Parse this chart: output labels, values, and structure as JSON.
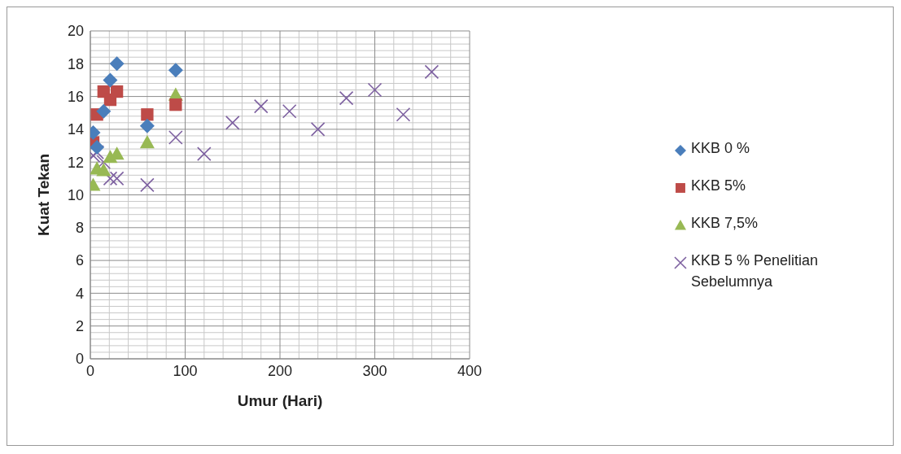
{
  "chart_data": {
    "type": "scatter",
    "xlabel": "Umur (Hari)",
    "ylabel": "Kuat Tekan",
    "xlim": [
      0,
      400
    ],
    "xticks": [
      0,
      100,
      200,
      300,
      400
    ],
    "ylim": [
      0,
      20
    ],
    "yticks": [
      0,
      2,
      4,
      6,
      8,
      10,
      12,
      14,
      16,
      18,
      20
    ],
    "grid": true,
    "legend": "right",
    "series": [
      {
        "name": "KKB 0 %",
        "color": "#4a7ebb",
        "marker": "diamond",
        "x": [
          3,
          7,
          14,
          21,
          28,
          60,
          90
        ],
        "values": [
          13.8,
          12.9,
          15.1,
          17.0,
          18.0,
          14.2,
          17.6
        ]
      },
      {
        "name": "KKB 5%",
        "color": "#be4b48",
        "marker": "square",
        "x": [
          3,
          7,
          14,
          21,
          28,
          60,
          90
        ],
        "values": [
          13.2,
          14.9,
          16.3,
          15.8,
          16.3,
          14.9,
          15.5
        ]
      },
      {
        "name": "KKB 7,5%",
        "color": "#98b954",
        "marker": "triangle",
        "x": [
          3,
          7,
          14,
          21,
          28,
          60,
          90
        ],
        "values": [
          10.6,
          11.6,
          11.5,
          12.3,
          12.5,
          13.2,
          16.1
        ]
      },
      {
        "name": "KKB 5 % Penelitian Sebelumnya",
        "color": "#7d60a0",
        "marker": "cross",
        "x": [
          3,
          7,
          14,
          21,
          28,
          60,
          90,
          120,
          150,
          180,
          210,
          240,
          270,
          300,
          330,
          360
        ],
        "values": [
          12.4,
          12.6,
          12.0,
          11.0,
          11.0,
          10.6,
          13.5,
          12.5,
          14.4,
          15.4,
          15.1,
          14.0,
          15.9,
          16.4,
          14.9,
          17.5
        ]
      }
    ]
  }
}
